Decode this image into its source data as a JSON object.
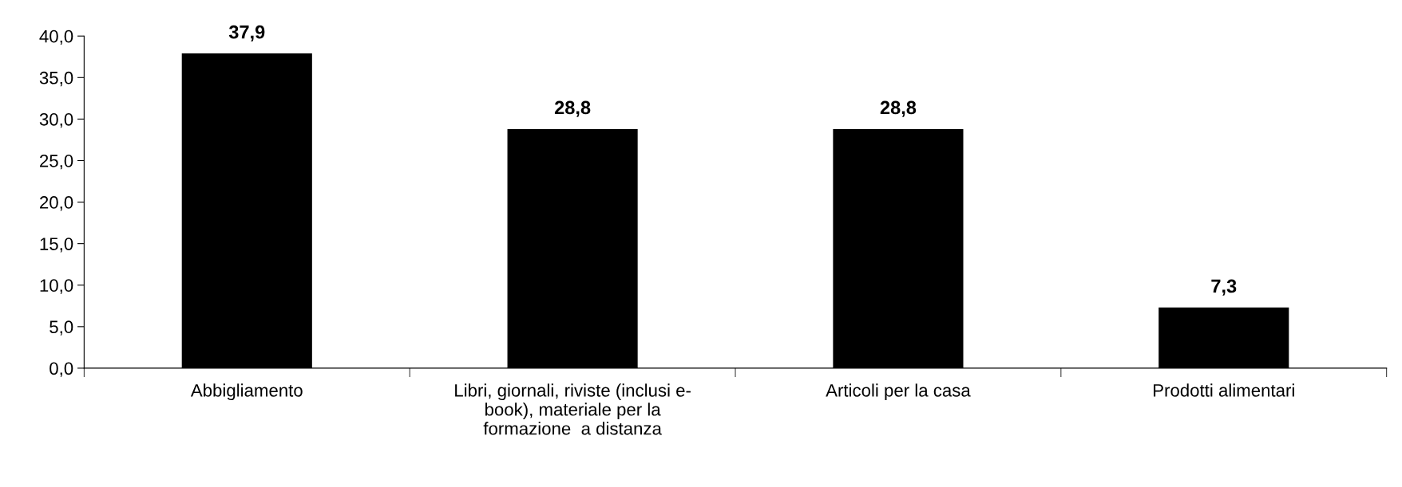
{
  "chart_data": {
    "type": "bar",
    "categories": [
      "Abbigliamento",
      "Libri, giornali, riviste (inclusi e-\nbook), materiale per la\nformazione  a distanza",
      "Articoli per la casa",
      "Prodotti alimentari"
    ],
    "values": [
      37.9,
      28.8,
      28.8,
      7.3
    ],
    "value_labels": [
      "37,9",
      "28,8",
      "28,8",
      "7,3"
    ],
    "color": "#000000",
    "ylim": [
      0,
      40
    ],
    "yticks": [
      {
        "value": 0,
        "label": "0,0"
      },
      {
        "value": 5,
        "label": "5,0"
      },
      {
        "value": 10,
        "label": "10,0"
      },
      {
        "value": 15,
        "label": "15,0"
      },
      {
        "value": 20,
        "label": "20,0"
      },
      {
        "value": 25,
        "label": "25,0"
      },
      {
        "value": 30,
        "label": "30,0"
      },
      {
        "value": 35,
        "label": "35,0"
      },
      {
        "value": 40,
        "label": "40,0"
      }
    ],
    "grid": false,
    "legend": false
  }
}
